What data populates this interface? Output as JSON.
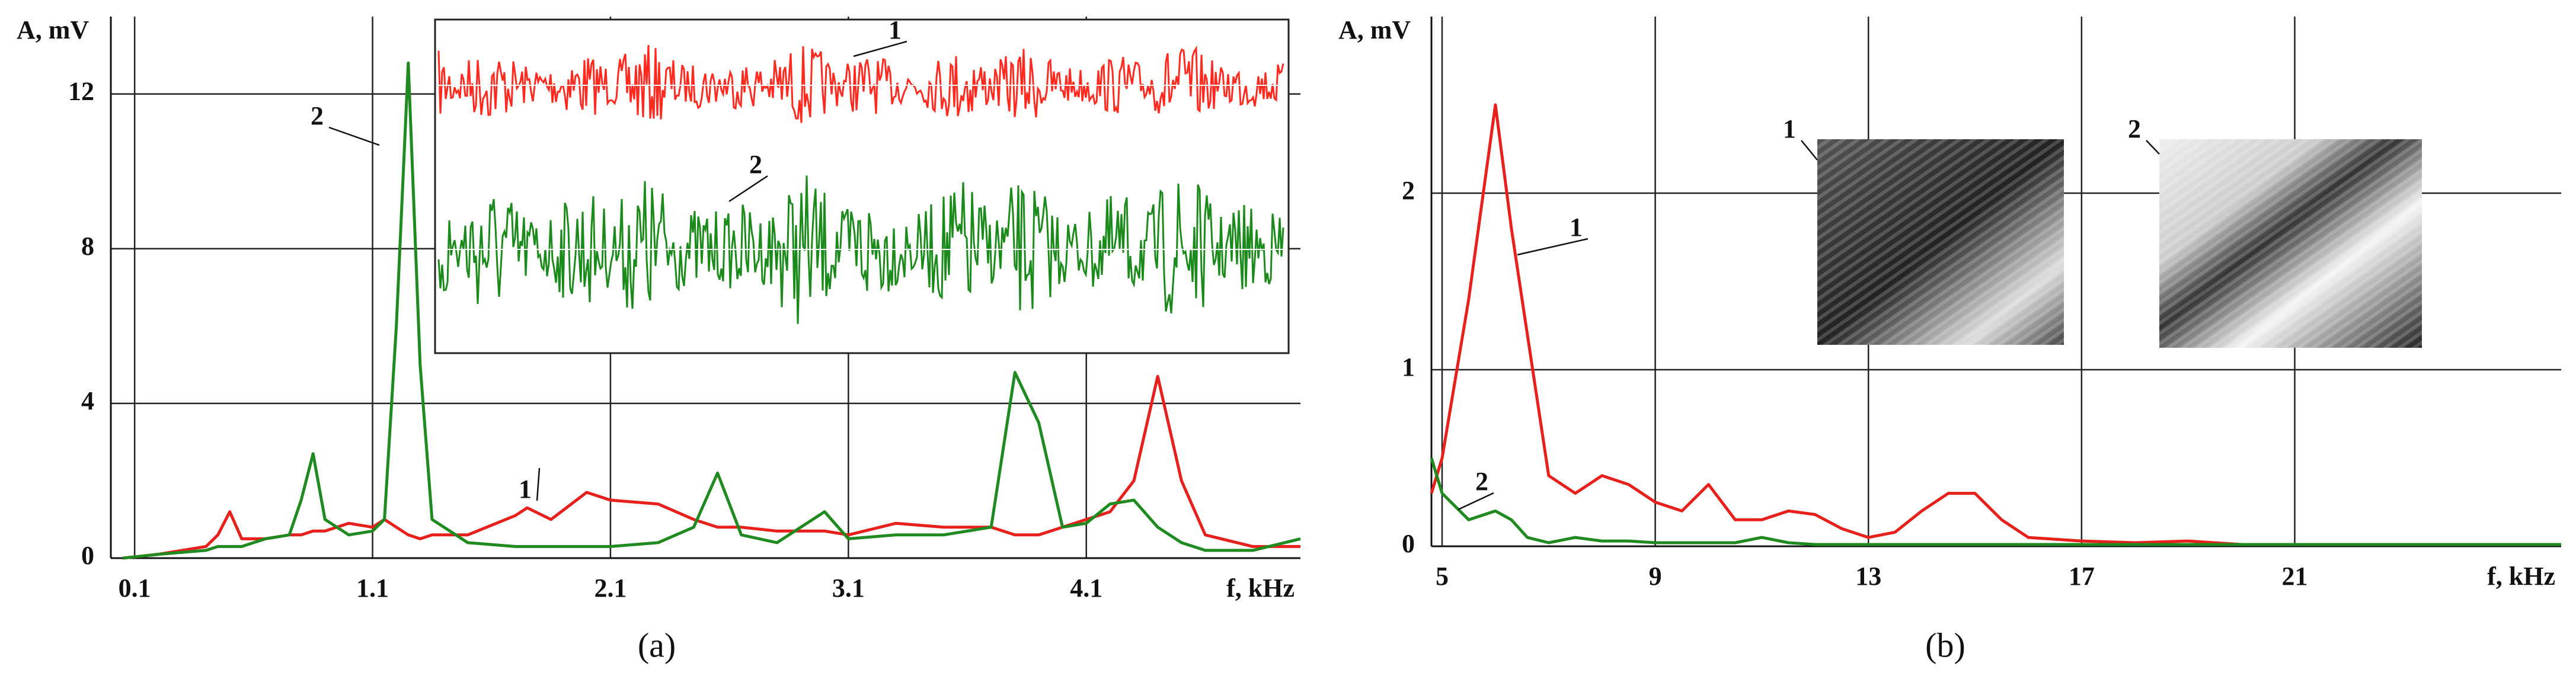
{
  "chart_data": [
    {
      "type": "line",
      "caption": "(a)",
      "ylabel": "A, mV",
      "xlabel": "f, kHz",
      "x": [
        0.05,
        0.2,
        0.4,
        0.45,
        0.5,
        0.55,
        0.65,
        0.75,
        0.8,
        0.85,
        0.9,
        1.0,
        1.1,
        1.15,
        1.2,
        1.25,
        1.3,
        1.35,
        1.5,
        1.7,
        1.75,
        1.85,
        2.0,
        2.1,
        2.3,
        2.45,
        2.55,
        2.65,
        2.8,
        3.0,
        3.1,
        3.3,
        3.5,
        3.7,
        3.8,
        3.9,
        4.0,
        4.1,
        4.2,
        4.3,
        4.4,
        4.5,
        4.6,
        4.8,
        5.0
      ],
      "series": [
        {
          "name": "1",
          "color": "#e8201c",
          "values": [
            0,
            0.1,
            0.3,
            0.6,
            1.2,
            0.5,
            0.5,
            0.6,
            0.6,
            0.7,
            0.7,
            0.9,
            0.8,
            1.0,
            0.8,
            0.6,
            0.5,
            0.6,
            0.6,
            1.1,
            1.3,
            1.0,
            1.7,
            1.5,
            1.4,
            1.0,
            0.8,
            0.8,
            0.7,
            0.7,
            0.6,
            0.9,
            0.8,
            0.8,
            0.6,
            0.6,
            0.8,
            1.0,
            1.2,
            2.0,
            4.7,
            2.0,
            0.6,
            0.3,
            0.3
          ]
        },
        {
          "name": "2",
          "color": "#1f8a1f",
          "values": [
            0,
            0.1,
            0.2,
            0.3,
            0.3,
            0.3,
            0.5,
            0.6,
            1.5,
            2.7,
            1.0,
            0.6,
            0.7,
            1.0,
            6,
            12.8,
            5,
            1.0,
            0.4,
            0.3,
            0.3,
            0.3,
            0.3,
            0.3,
            0.4,
            0.8,
            2.2,
            0.6,
            0.4,
            1.2,
            0.5,
            0.6,
            0.6,
            0.8,
            4.8,
            3.5,
            0.8,
            0.9,
            1.4,
            1.5,
            0.8,
            0.4,
            0.2,
            0.2,
            0.5
          ]
        }
      ],
      "inset_labels": [
        "1",
        "2"
      ],
      "xlim": [
        0,
        5
      ],
      "xticks": [
        0.1,
        1.1,
        2.1,
        3.1,
        4.1
      ],
      "ylim": [
        0,
        14
      ],
      "yticks": [
        0,
        4,
        8,
        12
      ],
      "grid": true
    },
    {
      "type": "line",
      "caption": "(b)",
      "ylabel": "A, mV",
      "xlabel": "f, kHz",
      "x": [
        4.8,
        5,
        5.5,
        6,
        6.3,
        6.6,
        7,
        7.5,
        8,
        8.5,
        9,
        9.5,
        10,
        10.5,
        11,
        11.5,
        12,
        12.5,
        13,
        13.5,
        14,
        14.5,
        15,
        15.5,
        16,
        17,
        18,
        19,
        20,
        22,
        24,
        26
      ],
      "series": [
        {
          "name": "1",
          "color": "#e8201c",
          "values": [
            0.3,
            0.5,
            1.4,
            2.5,
            1.8,
            1.2,
            0.4,
            0.3,
            0.4,
            0.35,
            0.25,
            0.2,
            0.35,
            0.15,
            0.15,
            0.2,
            0.18,
            0.1,
            0.05,
            0.08,
            0.2,
            0.3,
            0.3,
            0.15,
            0.05,
            0.03,
            0.02,
            0.03,
            0.01,
            0.01,
            0.01,
            0.01
          ]
        },
        {
          "name": "2",
          "color": "#1f8a1f",
          "values": [
            0.5,
            0.3,
            0.15,
            0.2,
            0.15,
            0.05,
            0.02,
            0.05,
            0.03,
            0.03,
            0.02,
            0.02,
            0.02,
            0.02,
            0.05,
            0.02,
            0.01,
            0.01,
            0.01,
            0.01,
            0.01,
            0.01,
            0.01,
            0.01,
            0.01,
            0.01,
            0.01,
            0.01,
            0.01,
            0.01,
            0.01,
            0.01
          ]
        }
      ],
      "inset_labels": [
        "1",
        "2"
      ],
      "xlim": [
        4.8,
        26
      ],
      "xticks": [
        5,
        9,
        13,
        17,
        21
      ],
      "ylim": [
        0,
        3
      ],
      "yticks": [
        0,
        1,
        2
      ],
      "grid": true
    }
  ]
}
